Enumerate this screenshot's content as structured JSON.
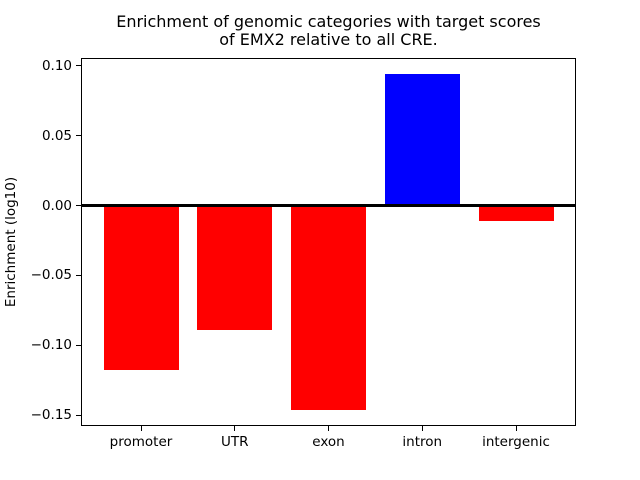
{
  "chart_data": {
    "type": "bar",
    "title_lines": [
      "Enrichment of genomic categories with target scores",
      "of EMX2 relative to all CRE."
    ],
    "title": "Enrichment of genomic categories with target scores\nof EMX2 relative to all CRE.",
    "xlabel": "",
    "ylabel": "Enrichment (log10)",
    "categories": [
      "promoter",
      "UTR",
      "exon",
      "intron",
      "intergenic"
    ],
    "values": [
      -0.118,
      -0.089,
      -0.146,
      0.094,
      -0.011
    ],
    "bar_colors": [
      "#ff0000",
      "#ff0000",
      "#ff0000",
      "#0000ff",
      "#ff0000"
    ],
    "negative_color": "#ff0000",
    "positive_color": "#0000ff",
    "yticks": [
      0.1,
      0.05,
      0.0,
      -0.05,
      -0.1,
      -0.15
    ],
    "ytick_labels": [
      "0.10",
      "0.05",
      "0.00",
      "−0.05",
      "−0.10",
      "−0.15"
    ],
    "ylim": [
      -0.1577,
      0.1055
    ],
    "xlim": [
      -0.64,
      4.64
    ],
    "bar_width": 0.8,
    "zero_line": true,
    "grid": false,
    "legend": false,
    "axis_color": "#000000",
    "background_color": "#ffffff"
  }
}
